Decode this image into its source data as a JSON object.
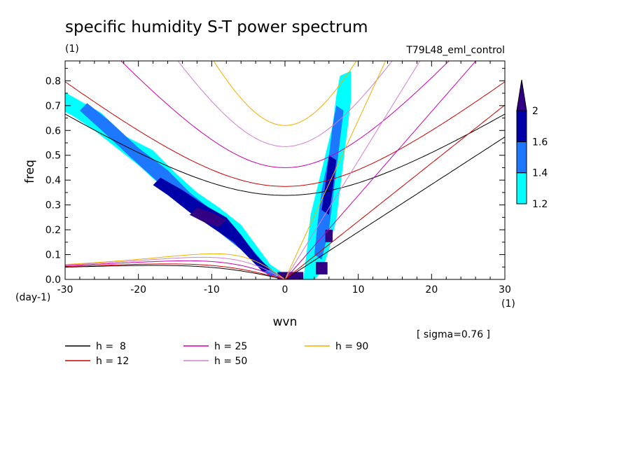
{
  "chart_data": {
    "type": "contour",
    "title": "specific humidity S-T power spectrum",
    "subtitle_left": "(1)",
    "subtitle_right": "T79L48_eml_control",
    "xlabel": "wvn",
    "ylabel": "freq",
    "x_unit": "(1)",
    "y_unit": "(day-1)",
    "xlim": [
      -30,
      30
    ],
    "ylim": [
      0,
      0.88
    ],
    "x_ticks": [
      -30,
      -20,
      -10,
      0,
      10,
      20,
      30
    ],
    "x_tick_labels": [
      "-30",
      "-20",
      "-10",
      "0",
      "10",
      "20",
      "30"
    ],
    "y_ticks": [
      0.0,
      0.1,
      0.2,
      0.3,
      0.4,
      0.5,
      0.6,
      0.7,
      0.8
    ],
    "y_tick_labels": [
      "0.0",
      "0.1",
      "0.2",
      "0.3",
      "0.4",
      "0.5",
      "0.6",
      "0.7",
      "0.8"
    ],
    "note": "[ sigma=0.76 ]",
    "colorbar": {
      "levels": [
        1.2,
        1.4,
        1.6,
        2
      ],
      "labels": [
        "1.2",
        "1.4",
        "1.6",
        "2"
      ],
      "colors": [
        "#00ffff",
        "#1e78ff",
        "#0000a8",
        "#320082"
      ]
    },
    "contour_regions": [
      {
        "name": "westward-band",
        "level": 1.2,
        "points": [
          [
            -31,
            0.77
          ],
          [
            -28,
            0.72
          ],
          [
            -25,
            0.67
          ],
          [
            -22,
            0.58
          ],
          [
            -18,
            0.52
          ],
          [
            -15,
            0.43
          ],
          [
            -12,
            0.35
          ],
          [
            -9,
            0.29
          ],
          [
            -6,
            0.22
          ],
          [
            -4,
            0.14
          ],
          [
            -2,
            0.06
          ],
          [
            0,
            0.02
          ],
          [
            1,
            0.0
          ],
          [
            -1,
            0.0
          ],
          [
            -3,
            0.06
          ],
          [
            -5,
            0.11
          ],
          [
            -8,
            0.17
          ],
          [
            -11,
            0.24
          ],
          [
            -14,
            0.31
          ],
          [
            -17,
            0.38
          ],
          [
            -20,
            0.46
          ],
          [
            -23,
            0.53
          ],
          [
            -26,
            0.6
          ],
          [
            -29,
            0.66
          ],
          [
            -31,
            0.69
          ]
        ]
      },
      {
        "name": "westward-band",
        "level": 1.4,
        "points": [
          [
            -27,
            0.71
          ],
          [
            -24,
            0.64
          ],
          [
            -20,
            0.53
          ],
          [
            -16,
            0.44
          ],
          [
            -13,
            0.35
          ],
          [
            -10,
            0.28
          ],
          [
            -7,
            0.21
          ],
          [
            -5,
            0.14
          ],
          [
            -3,
            0.07
          ],
          [
            -1,
            0.02
          ],
          [
            -2,
            0.01
          ],
          [
            -4,
            0.06
          ],
          [
            -6,
            0.12
          ],
          [
            -9,
            0.19
          ],
          [
            -12,
            0.26
          ],
          [
            -15,
            0.33
          ],
          [
            -18,
            0.41
          ],
          [
            -21,
            0.49
          ],
          [
            -25,
            0.6
          ],
          [
            -28,
            0.68
          ]
        ]
      },
      {
        "name": "westward-band",
        "level": 1.6,
        "points": [
          [
            -17,
            0.41
          ],
          [
            -14,
            0.36
          ],
          [
            -11,
            0.3
          ],
          [
            -8,
            0.25
          ],
          [
            -6,
            0.18
          ],
          [
            -4,
            0.1
          ],
          [
            -2,
            0.04
          ],
          [
            -3,
            0.03
          ],
          [
            -5,
            0.09
          ],
          [
            -7,
            0.15
          ],
          [
            -10,
            0.21
          ],
          [
            -13,
            0.27
          ],
          [
            -16,
            0.34
          ],
          [
            -18,
            0.38
          ]
        ]
      },
      {
        "name": "westward-core",
        "level": 2,
        "points": [
          [
            -12,
            0.29
          ],
          [
            -10,
            0.27
          ],
          [
            -8,
            0.24
          ],
          [
            -9,
            0.21
          ],
          [
            -11,
            0.23
          ],
          [
            -13,
            0.26
          ]
        ]
      },
      {
        "name": "eastward-band",
        "level": 1.2,
        "points": [
          [
            2.5,
            0.0
          ],
          [
            3,
            0.12
          ],
          [
            3.5,
            0.26
          ],
          [
            4.5,
            0.38
          ],
          [
            5.5,
            0.5
          ],
          [
            6.5,
            0.62
          ],
          [
            7,
            0.74
          ],
          [
            7.5,
            0.82
          ],
          [
            9,
            0.84
          ],
          [
            9,
            0.72
          ],
          [
            8.5,
            0.6
          ],
          [
            8,
            0.48
          ],
          [
            7.5,
            0.36
          ],
          [
            7,
            0.24
          ],
          [
            6,
            0.12
          ],
          [
            5,
            0.03
          ],
          [
            4,
            0.0
          ]
        ]
      },
      {
        "name": "eastward-band",
        "level": 1.4,
        "points": [
          [
            4,
            0.1
          ],
          [
            4.5,
            0.24
          ],
          [
            5,
            0.36
          ],
          [
            6,
            0.5
          ],
          [
            6.5,
            0.62
          ],
          [
            7,
            0.7
          ],
          [
            8,
            0.68
          ],
          [
            7.5,
            0.56
          ],
          [
            7,
            0.44
          ],
          [
            6.5,
            0.32
          ],
          [
            6,
            0.2
          ],
          [
            5,
            0.08
          ]
        ]
      },
      {
        "name": "eastward-band",
        "level": 1.6,
        "points": [
          [
            5,
            0.28
          ],
          [
            5.5,
            0.38
          ],
          [
            6,
            0.5
          ],
          [
            7,
            0.48
          ],
          [
            6.5,
            0.36
          ],
          [
            6,
            0.26
          ]
        ]
      },
      {
        "name": "eastward-core",
        "level": 2,
        "points": [
          [
            5.5,
            0.15
          ],
          [
            5.5,
            0.2
          ],
          [
            6.5,
            0.2
          ],
          [
            6.5,
            0.15
          ]
        ]
      },
      {
        "name": "eastward-core",
        "level": 2,
        "points": [
          [
            4.2,
            0.02
          ],
          [
            4.2,
            0.07
          ],
          [
            5.8,
            0.07
          ],
          [
            5.8,
            0.02
          ]
        ]
      },
      {
        "name": "origin-core",
        "level": 2,
        "points": [
          [
            -1,
            0.0
          ],
          [
            -1,
            0.03
          ],
          [
            2.5,
            0.03
          ],
          [
            2.5,
            0.0
          ]
        ]
      }
    ],
    "dispersion_curves": [
      {
        "label": "h =  8",
        "h": 8,
        "color": "#000000"
      },
      {
        "label": "h = 12",
        "h": 12,
        "color": "#cc0000"
      },
      {
        "label": "h = 25",
        "h": 25,
        "color": "#cc00aa"
      },
      {
        "label": "h = 50",
        "h": 50,
        "color": "#d080d0"
      },
      {
        "label": "h = 90",
        "h": 90,
        "color": "#f0b000"
      }
    ]
  }
}
